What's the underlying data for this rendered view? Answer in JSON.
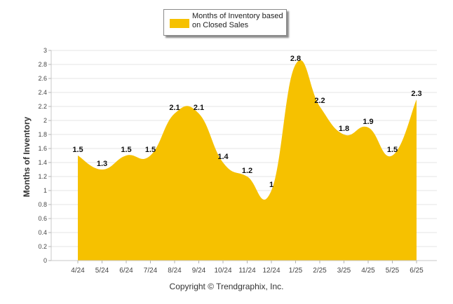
{
  "legend": {
    "label": "Months of Inventory based on Closed Sales"
  },
  "footer": {
    "copyright": "Copyright © Trendgraphix, Inc."
  },
  "colors": {
    "area": "#f6c100",
    "grid": "#e6e6e6",
    "axis_text": "#444444"
  },
  "chart_data": {
    "type": "area",
    "ylabel": "Months of Inventory",
    "xlabel": "",
    "ylim": [
      0,
      3
    ],
    "y_ticks": [
      "0",
      "0.2",
      "0.4",
      "0.6",
      "0.8",
      "1",
      "1.2",
      "1.4",
      "1.6",
      "1.8",
      "2",
      "2.2",
      "2.4",
      "2.6",
      "2.8",
      "3"
    ],
    "grid": true,
    "smooth": true,
    "categories": [
      "4/24",
      "5/24",
      "6/24",
      "7/24",
      "8/24",
      "9/24",
      "10/24",
      "11/24",
      "12/24",
      "1/25",
      "2/25",
      "3/25",
      "4/25",
      "5/25",
      "6/25"
    ],
    "series": [
      {
        "name": "Months of Inventory based on Closed Sales",
        "values": [
          1.5,
          1.3,
          1.5,
          1.5,
          2.1,
          2.1,
          1.4,
          1.2,
          1,
          2.8,
          2.2,
          1.8,
          1.9,
          1.5,
          2.3
        ],
        "labels": [
          "1.5",
          "1.3",
          "1.5",
          "1.5",
          "2.1",
          "2.1",
          "1.4",
          "1.2",
          "1",
          "2.8",
          "2.2",
          "1.8",
          "1.9",
          "1.5",
          "2.3"
        ]
      }
    ]
  }
}
